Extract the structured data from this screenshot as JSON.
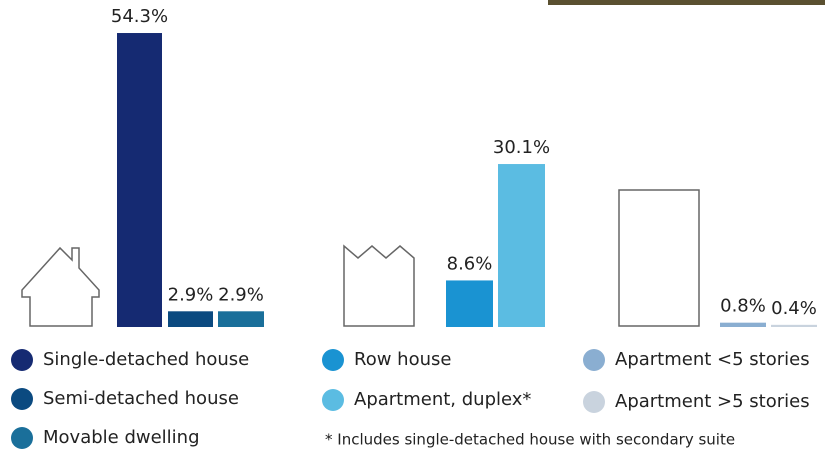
{
  "chart_data": {
    "type": "bar",
    "categories": [
      "Single-detached house",
      "Semi-detached house",
      "Movable dwelling",
      "Row house",
      "Apartment, duplex*",
      "Apartment <5 stories",
      "Apartment >5 stories"
    ],
    "values": [
      54.3,
      2.9,
      2.9,
      8.6,
      30.1,
      0.8,
      0.4
    ],
    "value_labels": [
      "54.3%",
      "2.9%",
      "2.9%",
      "8.6%",
      "30.1%",
      "0.8%",
      "0.4%"
    ],
    "colors": [
      "#152a72",
      "#0b4a80",
      "#1a6f9a",
      "#1a93d2",
      "#5bbce2",
      "#8aaed1",
      "#c9d3de"
    ],
    "footnote": "* Includes single-detached house with secondary suite"
  }
}
